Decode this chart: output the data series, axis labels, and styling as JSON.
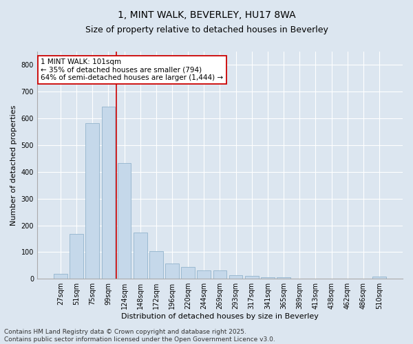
{
  "title": "1, MINT WALK, BEVERLEY, HU17 8WA",
  "subtitle": "Size of property relative to detached houses in Beverley",
  "xlabel": "Distribution of detached houses by size in Beverley",
  "ylabel": "Number of detached properties",
  "categories": [
    "27sqm",
    "51sqm",
    "75sqm",
    "99sqm",
    "124sqm",
    "148sqm",
    "172sqm",
    "196sqm",
    "220sqm",
    "244sqm",
    "269sqm",
    "293sqm",
    "317sqm",
    "341sqm",
    "365sqm",
    "389sqm",
    "413sqm",
    "438sqm",
    "462sqm",
    "486sqm",
    "510sqm"
  ],
  "values": [
    18,
    168,
    582,
    645,
    432,
    172,
    103,
    58,
    44,
    32,
    32,
    14,
    10,
    5,
    5,
    0,
    0,
    0,
    0,
    0,
    7
  ],
  "bar_color": "#c5d8ea",
  "bar_edge_color": "#92b4cc",
  "vline_x_index": 3.5,
  "vline_color": "#cc0000",
  "annotation_text": "1 MINT WALK: 101sqm\n← 35% of detached houses are smaller (794)\n64% of semi-detached houses are larger (1,444) →",
  "annotation_box_color": "#ffffff",
  "annotation_box_edge": "#cc0000",
  "ylim": [
    0,
    850
  ],
  "yticks": [
    0,
    100,
    200,
    300,
    400,
    500,
    600,
    700,
    800
  ],
  "background_color": "#dce6f0",
  "plot_bg_color": "#dce6f0",
  "footer_text": "Contains HM Land Registry data © Crown copyright and database right 2025.\nContains public sector information licensed under the Open Government Licence v3.0.",
  "title_fontsize": 10,
  "subtitle_fontsize": 9,
  "axis_label_fontsize": 8,
  "tick_fontsize": 7,
  "annotation_fontsize": 7.5,
  "footer_fontsize": 6.5
}
